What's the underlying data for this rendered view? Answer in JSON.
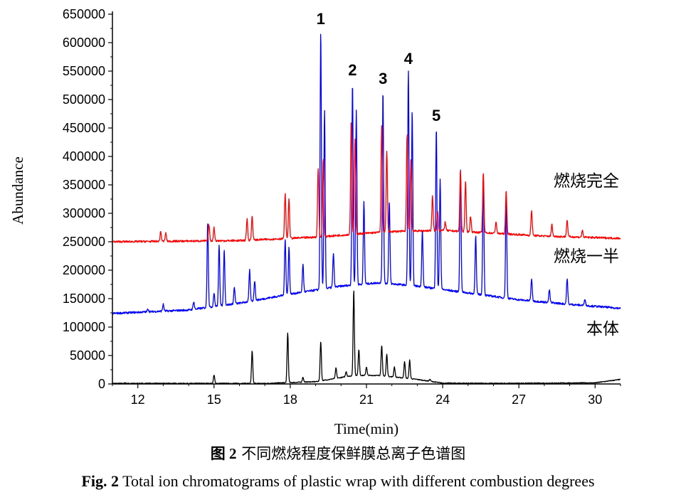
{
  "chart_data": {
    "type": "line",
    "title": "",
    "xlabel": "Time(min)",
    "ylabel": "Abundance",
    "xlim": [
      11,
      31
    ],
    "ylim": [
      0,
      650000
    ],
    "x_ticks": [
      12,
      15,
      18,
      21,
      24,
      27,
      30
    ],
    "y_ticks": [
      0,
      50000,
      100000,
      150000,
      200000,
      250000,
      300000,
      350000,
      400000,
      450000,
      500000,
      550000,
      600000,
      650000
    ],
    "grid": false,
    "legend": "none",
    "series": [
      {
        "name": "燃烧完全",
        "color": "#ff0000",
        "baseline": [
          [
            11,
            250000
          ],
          [
            16,
            252000
          ],
          [
            19,
            258000
          ],
          [
            21,
            265000
          ],
          [
            22,
            268000
          ],
          [
            24,
            270000
          ],
          [
            26,
            265000
          ],
          [
            28,
            260000
          ],
          [
            31,
            256000
          ]
        ],
        "peaks": [
          [
            12.9,
            268000
          ],
          [
            13.1,
            265000
          ],
          [
            14.8,
            280000
          ],
          [
            15.0,
            275000
          ],
          [
            16.3,
            290000
          ],
          [
            16.5,
            295000
          ],
          [
            17.8,
            335000
          ],
          [
            17.95,
            325000
          ],
          [
            19.1,
            380000
          ],
          [
            19.3,
            395000
          ],
          [
            20.4,
            460000
          ],
          [
            20.55,
            430000
          ],
          [
            21.6,
            455000
          ],
          [
            21.8,
            410000
          ],
          [
            22.6,
            440000
          ],
          [
            22.75,
            395000
          ],
          [
            23.6,
            330000
          ],
          [
            23.8,
            305000
          ],
          [
            24.1,
            285000
          ],
          [
            24.7,
            375000
          ],
          [
            24.9,
            355000
          ],
          [
            25.1,
            295000
          ],
          [
            25.6,
            370000
          ],
          [
            26.1,
            285000
          ],
          [
            26.5,
            340000
          ],
          [
            27.5,
            305000
          ],
          [
            28.3,
            280000
          ],
          [
            28.9,
            288000
          ],
          [
            29.5,
            270000
          ]
        ]
      },
      {
        "name": "燃烧一半",
        "color": "#0000ff",
        "baseline": [
          [
            11,
            124000
          ],
          [
            14,
            130000
          ],
          [
            16,
            142000
          ],
          [
            18,
            158000
          ],
          [
            20,
            172000
          ],
          [
            21.5,
            178000
          ],
          [
            23,
            172000
          ],
          [
            25,
            160000
          ],
          [
            27,
            148000
          ],
          [
            29,
            140000
          ],
          [
            31,
            133000
          ]
        ],
        "peaks": [
          [
            12.4,
            132000
          ],
          [
            13.0,
            140000
          ],
          [
            14.2,
            145000
          ],
          [
            14.75,
            285000
          ],
          [
            15.0,
            160000
          ],
          [
            15.2,
            245000
          ],
          [
            15.4,
            235000
          ],
          [
            15.8,
            170000
          ],
          [
            16.4,
            200000
          ],
          [
            16.6,
            182000
          ],
          [
            17.8,
            255000
          ],
          [
            17.95,
            240000
          ],
          [
            18.5,
            210000
          ],
          [
            19.2,
            620000
          ],
          [
            19.35,
            480000
          ],
          [
            19.7,
            230000
          ],
          [
            20.45,
            530000
          ],
          [
            20.6,
            480000
          ],
          [
            20.9,
            320000
          ],
          [
            21.65,
            515000
          ],
          [
            21.9,
            320000
          ],
          [
            22.65,
            550000
          ],
          [
            22.8,
            480000
          ],
          [
            23.2,
            270000
          ],
          [
            23.75,
            450000
          ],
          [
            23.9,
            360000
          ],
          [
            24.7,
            380000
          ],
          [
            25.6,
            365000
          ],
          [
            25.3,
            260000
          ],
          [
            26.5,
            330000
          ],
          [
            27.5,
            185000
          ],
          [
            28.2,
            165000
          ],
          [
            28.9,
            185000
          ],
          [
            29.6,
            150000
          ]
        ]
      },
      {
        "name": "本体",
        "color": "#000000",
        "baseline": [
          [
            11,
            1000
          ],
          [
            17,
            1000
          ],
          [
            19,
            4000
          ],
          [
            20.5,
            15000
          ],
          [
            21.5,
            15000
          ],
          [
            23,
            8000
          ],
          [
            24,
            1500
          ],
          [
            26,
            1000
          ],
          [
            30,
            2000
          ],
          [
            31,
            8000
          ]
        ],
        "peaks": [
          [
            11.5,
            2000
          ],
          [
            13.2,
            1500
          ],
          [
            15.0,
            16000
          ],
          [
            16.5,
            58000
          ],
          [
            17.9,
            90000
          ],
          [
            18.5,
            12000
          ],
          [
            19.2,
            75000
          ],
          [
            19.8,
            28000
          ],
          [
            20.2,
            22000
          ],
          [
            20.5,
            165000
          ],
          [
            20.7,
            60000
          ],
          [
            21.0,
            30000
          ],
          [
            21.6,
            68000
          ],
          [
            21.8,
            52000
          ],
          [
            22.1,
            30000
          ],
          [
            22.5,
            40000
          ],
          [
            22.7,
            42000
          ],
          [
            23.5,
            8000
          ]
        ]
      }
    ],
    "annotations": [
      {
        "text": "1",
        "x": 19.2,
        "y": 620000
      },
      {
        "text": "2",
        "x": 20.45,
        "y": 530000
      },
      {
        "text": "3",
        "x": 21.65,
        "y": 515000
      },
      {
        "text": "4",
        "x": 22.65,
        "y": 550000
      },
      {
        "text": "5",
        "x": 23.75,
        "y": 450000
      }
    ],
    "trace_labels": [
      "燃烧完全",
      "燃烧一半",
      "本体"
    ]
  },
  "caption": {
    "zh_prefix": "图 2",
    "zh_text": "不同燃烧程度保鲜膜总离子色谱图",
    "en_prefix": "Fig. 2",
    "en_text": "Total ion chromatograms of plastic wrap with different combustion degrees"
  }
}
